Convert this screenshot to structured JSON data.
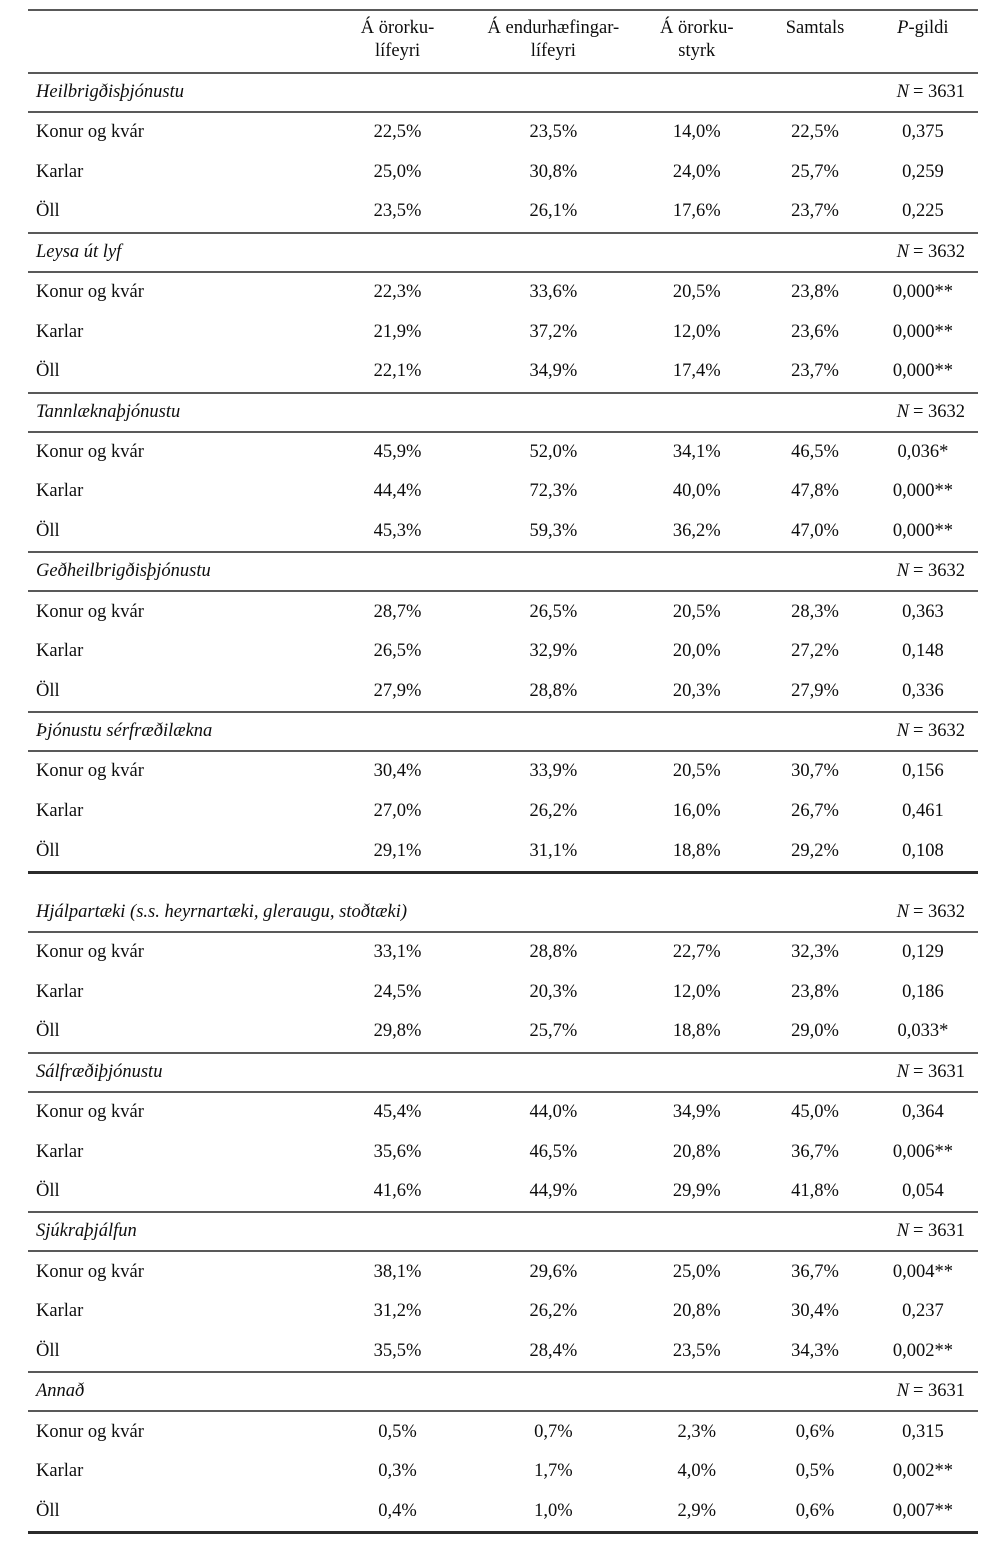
{
  "page": {
    "background": "#ffffff",
    "text_color": "#0d0d0d",
    "rule_color": "#595959",
    "heavy_rule_color": "#2b2b2b"
  },
  "table": {
    "n_prefix": "N",
    "header": {
      "columns": [
        {
          "lines": [
            "Á örorku-",
            "lífeyri"
          ]
        },
        {
          "lines": [
            "Á endurhæfingar-",
            "lífeyri"
          ]
        },
        {
          "lines": [
            "Á örorku-",
            "styrk"
          ]
        },
        {
          "lines": [
            "Samtals"
          ]
        },
        {
          "italic": "P",
          "rest": "-gildi"
        }
      ]
    },
    "parts": [
      {
        "sections": [
          {
            "label": "Heilbrigðisþjónustu",
            "n": "= 3631",
            "rows": [
              {
                "label": "Konur og kvár",
                "values": [
                  "22,5%",
                  "23,5%",
                  "14,0%",
                  "22,5%",
                  "0,375"
                ]
              },
              {
                "label": "Karlar",
                "values": [
                  "25,0%",
                  "30,8%",
                  "24,0%",
                  "25,7%",
                  "0,259"
                ]
              },
              {
                "label": "Öll",
                "values": [
                  "23,5%",
                  "26,1%",
                  "17,6%",
                  "23,7%",
                  "0,225"
                ]
              }
            ]
          },
          {
            "label": "Leysa út lyf",
            "n": "= 3632",
            "rows": [
              {
                "label": "Konur og kvár",
                "values": [
                  "22,3%",
                  "33,6%",
                  "20,5%",
                  "23,8%",
                  "0,000**"
                ]
              },
              {
                "label": "Karlar",
                "values": [
                  "21,9%",
                  "37,2%",
                  "12,0%",
                  "23,6%",
                  "0,000**"
                ]
              },
              {
                "label": "Öll",
                "values": [
                  "22,1%",
                  "34,9%",
                  "17,4%",
                  "23,7%",
                  "0,000**"
                ]
              }
            ]
          },
          {
            "label": "Tannlæknaþjónustu",
            "n": "= 3632",
            "rows": [
              {
                "label": "Konur og kvár",
                "values": [
                  "45,9%",
                  "52,0%",
                  "34,1%",
                  "46,5%",
                  "0,036*"
                ]
              },
              {
                "label": "Karlar",
                "values": [
                  "44,4%",
                  "72,3%",
                  "40,0%",
                  "47,8%",
                  "0,000**"
                ]
              },
              {
                "label": "Öll",
                "values": [
                  "45,3%",
                  "59,3%",
                  "36,2%",
                  "47,0%",
                  "0,000**"
                ]
              }
            ]
          },
          {
            "label": "Geðheilbrigðisþjónustu",
            "n": "= 3632",
            "rows": [
              {
                "label": "Konur og kvár",
                "values": [
                  "28,7%",
                  "26,5%",
                  "20,5%",
                  "28,3%",
                  "0,363"
                ]
              },
              {
                "label": "Karlar",
                "values": [
                  "26,5%",
                  "32,9%",
                  "20,0%",
                  "27,2%",
                  "0,148"
                ]
              },
              {
                "label": "Öll",
                "values": [
                  "27,9%",
                  "28,8%",
                  "20,3%",
                  "27,9%",
                  "0,336"
                ]
              }
            ]
          },
          {
            "label": "Þjónustu sérfræðilækna",
            "n": "= 3632",
            "rows": [
              {
                "label": "Konur og kvár",
                "values": [
                  "30,4%",
                  "33,9%",
                  "20,5%",
                  "30,7%",
                  "0,156"
                ]
              },
              {
                "label": "Karlar",
                "values": [
                  "27,0%",
                  "26,2%",
                  "16,0%",
                  "26,7%",
                  "0,461"
                ]
              },
              {
                "label": "Öll",
                "values": [
                  "29,1%",
                  "31,1%",
                  "18,8%",
                  "29,2%",
                  "0,108"
                ]
              }
            ]
          }
        ]
      },
      {
        "sections": [
          {
            "label": "Hjálpartæki (s.s. heyrnartæki, gleraugu, stoðtæki)",
            "n": "= 3632",
            "rows": [
              {
                "label": "Konur og kvár",
                "values": [
                  "33,1%",
                  "28,8%",
                  "22,7%",
                  "32,3%",
                  "0,129"
                ]
              },
              {
                "label": "Karlar",
                "values": [
                  "24,5%",
                  "20,3%",
                  "12,0%",
                  "23,8%",
                  "0,186"
                ]
              },
              {
                "label": "Öll",
                "values": [
                  "29,8%",
                  "25,7%",
                  "18,8%",
                  "29,0%",
                  "0,033*"
                ]
              }
            ]
          },
          {
            "label": "Sálfræðiþjónustu",
            "n": "= 3631",
            "rows": [
              {
                "label": "Konur og kvár",
                "values": [
                  "45,4%",
                  "44,0%",
                  "34,9%",
                  "45,0%",
                  "0,364"
                ]
              },
              {
                "label": "Karlar",
                "values": [
                  "35,6%",
                  "46,5%",
                  "20,8%",
                  "36,7%",
                  "0,006**"
                ]
              },
              {
                "label": "Öll",
                "values": [
                  "41,6%",
                  "44,9%",
                  "29,9%",
                  "41,8%",
                  "0,054"
                ]
              }
            ]
          },
          {
            "label": "Sjúkraþjálfun",
            "n": "= 3631",
            "rows": [
              {
                "label": "Konur og kvár",
                "values": [
                  "38,1%",
                  "29,6%",
                  "25,0%",
                  "36,7%",
                  "0,004**"
                ]
              },
              {
                "label": "Karlar",
                "values": [
                  "31,2%",
                  "26,2%",
                  "20,8%",
                  "30,4%",
                  "0,237"
                ]
              },
              {
                "label": "Öll",
                "values": [
                  "35,5%",
                  "28,4%",
                  "23,5%",
                  "34,3%",
                  "0,002**"
                ]
              }
            ]
          },
          {
            "label": "Annað",
            "n": "= 3631",
            "rows": [
              {
                "label": "Konur og kvár",
                "values": [
                  "0,5%",
                  "0,7%",
                  "2,3%",
                  "0,6%",
                  "0,315"
                ]
              },
              {
                "label": "Karlar",
                "values": [
                  "0,3%",
                  "1,7%",
                  "4,0%",
                  "0,5%",
                  "0,002**"
                ]
              },
              {
                "label": "Öll",
                "values": [
                  "0,4%",
                  "1,0%",
                  "2,9%",
                  "0,6%",
                  "0,007**"
                ]
              }
            ]
          }
        ]
      }
    ]
  }
}
